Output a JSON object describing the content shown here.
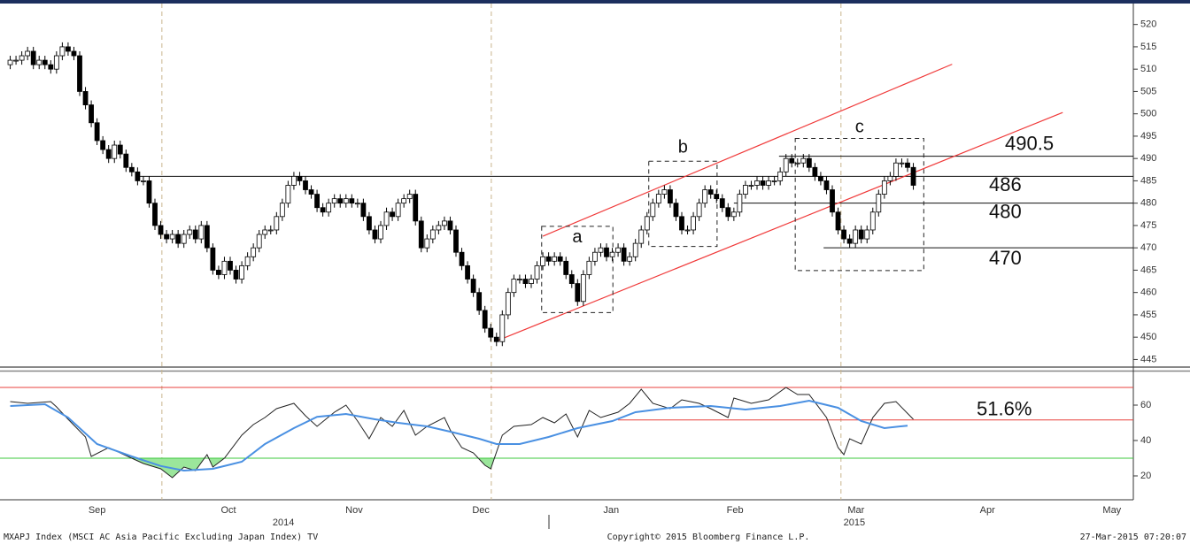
{
  "chart_data": [
    {
      "type": "candlestick",
      "x": [
        0,
        1,
        2,
        3,
        4,
        5,
        6,
        7,
        8,
        9,
        10,
        11,
        12,
        13,
        14,
        15,
        16,
        17,
        18,
        19,
        20,
        21,
        22,
        23,
        24,
        25,
        26,
        27,
        28,
        29,
        30,
        31,
        32,
        33,
        34,
        35,
        36,
        37,
        38,
        39,
        40,
        41,
        42,
        43,
        44,
        45,
        46,
        47,
        48,
        49,
        50,
        51,
        52,
        53,
        54,
        55,
        56,
        57,
        58,
        59,
        60,
        61,
        62,
        63,
        64,
        65,
        66,
        67,
        68,
        69,
        70,
        71,
        72,
        73,
        74,
        75,
        76,
        77,
        78,
        79,
        80,
        81,
        82,
        83,
        84,
        85,
        86,
        87,
        88,
        89,
        90,
        91,
        92,
        93,
        94,
        95,
        96,
        97,
        98,
        99,
        100,
        101,
        102,
        103,
        104,
        105,
        106,
        107,
        108,
        109,
        110,
        111,
        112,
        113,
        114,
        115,
        116,
        117,
        118,
        119,
        120,
        121,
        122,
        123,
        124,
        125,
        126,
        127,
        128,
        129,
        130,
        131,
        132,
        133,
        134,
        135,
        136,
        137,
        138,
        139,
        140,
        141,
        142,
        143,
        144,
        145,
        146,
        147,
        148,
        149,
        150,
        151,
        152,
        153,
        154,
        155,
        156
      ],
      "open": [
        511,
        512,
        512,
        513,
        514,
        511,
        512,
        511,
        510,
        513,
        515,
        514,
        513,
        505,
        502,
        498,
        494,
        492,
        490,
        493,
        491,
        488,
        487,
        485,
        485,
        480,
        475,
        473,
        472,
        473,
        471,
        473,
        474,
        472,
        475,
        470,
        465,
        464,
        467,
        465,
        463,
        466,
        468,
        470,
        473,
        474,
        474,
        477,
        480,
        484,
        486,
        485,
        483,
        482,
        479,
        478,
        480,
        481,
        480,
        481,
        480,
        480,
        477,
        474,
        472,
        475,
        478,
        477,
        480,
        481,
        482,
        476,
        470,
        472,
        474,
        475,
        476,
        474,
        469,
        466,
        463,
        460,
        456,
        452,
        450,
        449,
        455,
        460,
        463,
        463,
        462,
        463,
        466,
        468,
        467,
        468,
        467,
        464,
        462,
        458,
        464,
        467,
        469,
        470,
        468,
        469,
        470,
        467,
        468,
        471,
        474,
        477,
        480,
        482,
        483,
        480,
        477,
        474,
        474,
        477,
        480,
        483,
        482,
        481,
        479,
        477,
        478,
        482,
        484,
        484,
        485,
        484,
        485,
        485,
        487,
        490,
        489,
        489,
        490,
        488,
        486,
        485,
        483,
        478,
        474,
        472,
        471,
        474,
        472,
        474,
        478,
        482,
        485,
        486,
        489,
        489,
        488
      ],
      "high": [
        513,
        513,
        514,
        515,
        515,
        513,
        513,
        512,
        514,
        516,
        516,
        515,
        514,
        506,
        503,
        499,
        495,
        493,
        494,
        494,
        492,
        489,
        488,
        486,
        486,
        481,
        476,
        474,
        474,
        474,
        474,
        475,
        475,
        476,
        476,
        471,
        466,
        468,
        468,
        466,
        467,
        469,
        471,
        474,
        475,
        475,
        478,
        481,
        485,
        487,
        487,
        486,
        484,
        483,
        480,
        481,
        482,
        482,
        482,
        482,
        481,
        481,
        478,
        475,
        476,
        479,
        479,
        481,
        482,
        483,
        483,
        477,
        473,
        475,
        476,
        477,
        477,
        475,
        470,
        467,
        464,
        461,
        457,
        453,
        451,
        456,
        461,
        464,
        464,
        464,
        464,
        467,
        469,
        469,
        469,
        469,
        468,
        465,
        463,
        465,
        468,
        470,
        471,
        471,
        470,
        471,
        471,
        469,
        472,
        475,
        478,
        481,
        483,
        484,
        484,
        481,
        478,
        475,
        478,
        481,
        484,
        484,
        483,
        482,
        480,
        479,
        483,
        485,
        485,
        486,
        486,
        486,
        486,
        488,
        491,
        491,
        490,
        491,
        491,
        489,
        487,
        486,
        484,
        479,
        475,
        473,
        475,
        475,
        475,
        479,
        483,
        486,
        487,
        490,
        490,
        490,
        489
      ],
      "low": [
        510,
        511,
        511,
        512,
        510,
        510,
        510,
        509,
        509,
        512,
        513,
        512,
        504,
        501,
        497,
        493,
        491,
        489,
        489,
        490,
        487,
        486,
        484,
        484,
        479,
        474,
        472,
        471,
        471,
        470,
        470,
        472,
        471,
        471,
        469,
        464,
        463,
        463,
        464,
        462,
        462,
        465,
        467,
        469,
        472,
        473,
        473,
        476,
        479,
        483,
        484,
        482,
        481,
        478,
        477,
        477,
        479,
        479,
        479,
        479,
        479,
        476,
        473,
        471,
        471,
        474,
        476,
        476,
        479,
        480,
        475,
        469,
        469,
        471,
        473,
        474,
        473,
        468,
        465,
        462,
        459,
        455,
        451,
        449,
        448,
        448,
        454,
        459,
        462,
        461,
        461,
        462,
        465,
        466,
        466,
        466,
        463,
        461,
        457,
        457,
        463,
        466,
        468,
        467,
        467,
        468,
        466,
        466,
        467,
        470,
        473,
        476,
        479,
        481,
        479,
        476,
        473,
        473,
        473,
        476,
        479,
        481,
        480,
        478,
        476,
        476,
        477,
        481,
        483,
        483,
        483,
        483,
        484,
        484,
        486,
        488,
        488,
        488,
        487,
        485,
        484,
        482,
        477,
        473,
        471,
        470,
        470,
        471,
        471,
        473,
        477,
        481,
        484,
        485,
        488,
        487,
        483
      ],
      "close": [
        512,
        512,
        513,
        514,
        511,
        512,
        511,
        510,
        513,
        515,
        514,
        513,
        505,
        502,
        498,
        494,
        492,
        490,
        493,
        491,
        488,
        487,
        485,
        485,
        480,
        475,
        473,
        472,
        473,
        471,
        473,
        474,
        472,
        475,
        470,
        465,
        464,
        467,
        465,
        463,
        466,
        468,
        470,
        473,
        474,
        474,
        477,
        480,
        484,
        486,
        485,
        483,
        482,
        479,
        478,
        480,
        481,
        480,
        481,
        480,
        480,
        477,
        474,
        472,
        475,
        478,
        477,
        480,
        481,
        482,
        476,
        470,
        472,
        474,
        475,
        476,
        474,
        469,
        466,
        463,
        460,
        456,
        452,
        450,
        449,
        455,
        460,
        463,
        463,
        462,
        463,
        466,
        468,
        467,
        468,
        467,
        464,
        462,
        458,
        464,
        467,
        469,
        470,
        468,
        469,
        470,
        467,
        468,
        471,
        474,
        477,
        480,
        482,
        483,
        480,
        477,
        474,
        474,
        477,
        480,
        483,
        482,
        481,
        479,
        477,
        478,
        482,
        484,
        484,
        485,
        484,
        485,
        485,
        487,
        490,
        489,
        489,
        490,
        488,
        486,
        485,
        483,
        478,
        474,
        472,
        471,
        474,
        472,
        474,
        478,
        482,
        485,
        486,
        489,
        489,
        488,
        484
      ],
      "up_color": "#ffffff",
      "down_color": "#000000",
      "xlim": [
        -1,
        194
      ],
      "ylim": [
        443.5,
        523.5
      ],
      "yticks": [
        445,
        450,
        455,
        460,
        465,
        470,
        475,
        480,
        485,
        490,
        495,
        500,
        505,
        510,
        515,
        520
      ],
      "vlines": [
        26.2,
        83.1,
        143.5
      ],
      "vline_color": "#c8b48c",
      "levels": [
        {
          "value": 490.5,
          "x0": 132.8
        },
        {
          "value": 486,
          "x0": 22
        },
        {
          "value": 480,
          "x0": 125
        },
        {
          "value": 470,
          "x0": 140.5
        }
      ],
      "channel": {
        "color": "#f03a3a",
        "lines": [
          {
            "x": [
              92,
              162.7
            ],
            "y": [
              472.6,
              511.1
            ]
          },
          {
            "x": [
              83.9,
              181.8
            ],
            "y": [
              449.1,
              500.3
            ]
          }
        ]
      },
      "boxes": [
        {
          "label": "a",
          "x": [
            91.8,
            104.1
          ],
          "y": [
            455.5,
            474.8
          ]
        },
        {
          "label": "b",
          "x": [
            110.3,
            122.1
          ],
          "y": [
            470.3,
            489.4
          ]
        },
        {
          "label": "c",
          "x": [
            135.6,
            157.8
          ],
          "y": [
            464.9,
            494.5
          ]
        }
      ]
    },
    {
      "type": "line",
      "xlim": [
        -1,
        194
      ],
      "ylim": [
        8,
        78
      ],
      "yticks": [
        20,
        40,
        60
      ],
      "xticks": [
        {
          "value": 15,
          "label": "Sep"
        },
        {
          "value": 37.7,
          "label": "Oct"
        },
        {
          "value": 59.4,
          "label": "Nov"
        },
        {
          "value": 81.3,
          "label": "Dec"
        },
        {
          "value": 103.8,
          "label": "Jan"
        },
        {
          "value": 125.2,
          "label": "Feb"
        },
        {
          "value": 146.1,
          "label": "Mar"
        },
        {
          "value": 168.8,
          "label": "Apr"
        },
        {
          "value": 190.3,
          "label": "May"
        }
      ],
      "year_labels": [
        {
          "value": 47.2,
          "label": "2014"
        },
        {
          "value": 145.8,
          "label": "2015"
        }
      ],
      "series": [
        {
          "color": "#222222",
          "x": [
            0,
            3,
            7,
            8,
            10,
            13,
            14,
            17,
            19,
            21,
            23,
            26,
            28,
            30,
            32,
            34,
            35,
            37,
            40,
            42,
            44,
            46,
            49,
            51,
            53,
            56,
            58,
            60,
            62,
            64,
            66,
            68,
            70,
            72,
            75,
            76,
            78,
            80,
            82,
            83,
            85,
            87,
            90,
            92,
            94,
            96,
            98,
            100,
            102,
            105,
            107,
            109,
            111,
            114,
            116,
            119,
            121,
            124,
            125,
            128,
            131,
            134,
            136,
            138,
            141,
            143,
            144,
            145,
            147,
            149,
            151,
            153,
            156
          ],
          "values": [
            62,
            61,
            62,
            59,
            52,
            42,
            31,
            36,
            33,
            30,
            27,
            24,
            19,
            25,
            23,
            32,
            25,
            30,
            43,
            49,
            53,
            58,
            61,
            54,
            48,
            56,
            60,
            51,
            41,
            53,
            48,
            57,
            43,
            48,
            53,
            46,
            36,
            33,
            26,
            24,
            43,
            48,
            49,
            53,
            50,
            55,
            42,
            57,
            53,
            56,
            61,
            69,
            61,
            58,
            63,
            61,
            58,
            53,
            64,
            61,
            63,
            70,
            66,
            66,
            53,
            36,
            32,
            41,
            38,
            53,
            61,
            62,
            52
          ]
        },
        {
          "color": "#4a90e2",
          "x": [
            0,
            6,
            10,
            15,
            21,
            26,
            30,
            35,
            40,
            44,
            49,
            53,
            58,
            63,
            67,
            72,
            76,
            81,
            84,
            88,
            93,
            98,
            104,
            108,
            114,
            121,
            127,
            133,
            138,
            143,
            147,
            151,
            155
          ],
          "values": [
            59.5,
            60.5,
            53,
            38,
            31,
            25.6,
            23,
            24,
            28,
            38,
            47,
            53.4,
            55,
            52,
            50,
            48,
            45,
            41,
            38,
            38,
            42,
            47,
            51,
            56,
            58.5,
            59.5,
            57.5,
            59.5,
            62.5,
            58.5,
            51,
            47,
            48.4
          ]
        }
      ],
      "ref_lines": [
        {
          "value": 70,
          "color": "#e8403c"
        },
        {
          "value": 30,
          "color": "#3cc83c",
          "fill": "#9be69b"
        }
      ],
      "level": {
        "value": 51.6,
        "label": "51.6%",
        "x0": 105,
        "color": "#e8403c"
      }
    }
  ],
  "footer": {
    "left": "MXAPJ Index (MSCI AC Asia Pacific Excluding Japan Index) TV",
    "center": "Copyright© 2015 Bloomberg Finance L.P.",
    "right": "27-Mar-2015 07:20:07"
  }
}
